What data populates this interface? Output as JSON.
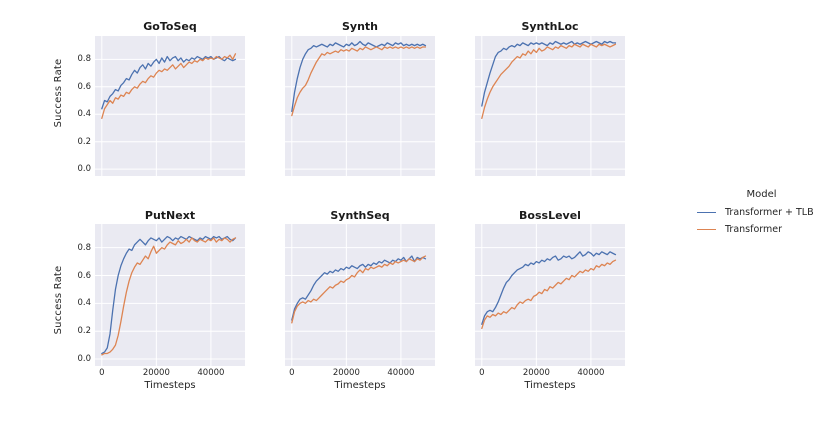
{
  "figure": {
    "ylabel": "Success Rate",
    "xlabel": "Timesteps",
    "plot_bg": "#eaeaf2",
    "grid_color": "#ffffff",
    "text_color": "#262626",
    "yticks": [
      "0.0",
      "0.2",
      "0.4",
      "0.6",
      "0.8"
    ],
    "ygrid": [
      0.0,
      0.2,
      0.4,
      0.6,
      0.8
    ],
    "xticks": [
      "0",
      "20000",
      "40000"
    ],
    "xgrid": [
      0,
      20000,
      40000
    ],
    "xlim": [
      -2500,
      52500
    ],
    "ylim": [
      -0.05,
      0.97
    ]
  },
  "legend": {
    "title": "Model",
    "entries": [
      {
        "label": "Transformer + TLB",
        "color": "#4c72b0"
      },
      {
        "label": "Transformer",
        "color": "#dd8452"
      }
    ]
  },
  "chart_data": [
    {
      "type": "line",
      "title": "GoToSeq",
      "xlabel": "Timesteps",
      "ylabel": "Success Rate",
      "xlim": [
        -2500,
        52500
      ],
      "ylim": [
        -0.05,
        0.97
      ],
      "x_step": 1000,
      "series": [
        {
          "name": "Transformer + TLB",
          "color": "#4c72b0",
          "values": [
            0.44,
            0.5,
            0.49,
            0.53,
            0.55,
            0.58,
            0.57,
            0.61,
            0.63,
            0.66,
            0.65,
            0.69,
            0.72,
            0.7,
            0.74,
            0.76,
            0.73,
            0.77,
            0.75,
            0.78,
            0.8,
            0.77,
            0.81,
            0.78,
            0.82,
            0.79,
            0.81,
            0.82,
            0.79,
            0.81,
            0.78,
            0.8,
            0.79,
            0.81,
            0.8,
            0.82,
            0.81,
            0.8,
            0.82,
            0.81,
            0.82,
            0.8,
            0.81,
            0.82,
            0.8,
            0.79,
            0.81,
            0.8,
            0.79,
            0.8
          ]
        },
        {
          "name": "Transformer",
          "color": "#dd8452",
          "values": [
            0.37,
            0.44,
            0.47,
            0.5,
            0.48,
            0.52,
            0.51,
            0.54,
            0.53,
            0.56,
            0.55,
            0.58,
            0.6,
            0.59,
            0.62,
            0.64,
            0.63,
            0.66,
            0.68,
            0.67,
            0.7,
            0.72,
            0.71,
            0.73,
            0.72,
            0.74,
            0.76,
            0.73,
            0.75,
            0.77,
            0.74,
            0.76,
            0.78,
            0.77,
            0.79,
            0.78,
            0.8,
            0.79,
            0.81,
            0.8,
            0.81,
            0.8,
            0.82,
            0.81,
            0.8,
            0.82,
            0.81,
            0.83,
            0.8,
            0.84
          ]
        }
      ]
    },
    {
      "type": "line",
      "title": "Synth",
      "xlabel": "Timesteps",
      "ylabel": "Success Rate",
      "xlim": [
        -2500,
        52500
      ],
      "ylim": [
        -0.05,
        0.97
      ],
      "x_step": 1000,
      "series": [
        {
          "name": "Transformer + TLB",
          "color": "#4c72b0",
          "values": [
            0.42,
            0.56,
            0.66,
            0.74,
            0.8,
            0.84,
            0.87,
            0.88,
            0.9,
            0.89,
            0.9,
            0.91,
            0.9,
            0.89,
            0.91,
            0.9,
            0.92,
            0.91,
            0.9,
            0.89,
            0.91,
            0.9,
            0.92,
            0.9,
            0.91,
            0.93,
            0.91,
            0.9,
            0.92,
            0.91,
            0.9,
            0.89,
            0.9,
            0.91,
            0.9,
            0.92,
            0.91,
            0.9,
            0.92,
            0.91,
            0.92,
            0.9,
            0.91,
            0.9,
            0.91,
            0.9,
            0.91,
            0.9,
            0.91,
            0.9
          ]
        },
        {
          "name": "Transformer",
          "color": "#dd8452",
          "values": [
            0.39,
            0.46,
            0.52,
            0.56,
            0.59,
            0.61,
            0.65,
            0.7,
            0.74,
            0.78,
            0.81,
            0.84,
            0.83,
            0.85,
            0.84,
            0.85,
            0.86,
            0.85,
            0.87,
            0.86,
            0.87,
            0.86,
            0.88,
            0.87,
            0.86,
            0.88,
            0.87,
            0.89,
            0.88,
            0.87,
            0.88,
            0.89,
            0.88,
            0.87,
            0.89,
            0.88,
            0.89,
            0.88,
            0.89,
            0.88,
            0.89,
            0.88,
            0.89,
            0.88,
            0.89,
            0.88,
            0.89,
            0.88,
            0.89,
            0.89
          ]
        }
      ]
    },
    {
      "type": "line",
      "title": "SynthLoc",
      "xlabel": "Timesteps",
      "ylabel": "Success Rate",
      "xlim": [
        -2500,
        52500
      ],
      "ylim": [
        -0.05,
        0.97
      ],
      "x_step": 1000,
      "series": [
        {
          "name": "Transformer + TLB",
          "color": "#4c72b0",
          "values": [
            0.46,
            0.56,
            0.63,
            0.7,
            0.76,
            0.82,
            0.85,
            0.86,
            0.88,
            0.87,
            0.89,
            0.9,
            0.89,
            0.91,
            0.9,
            0.92,
            0.91,
            0.9,
            0.92,
            0.91,
            0.92,
            0.91,
            0.92,
            0.91,
            0.9,
            0.92,
            0.91,
            0.93,
            0.92,
            0.91,
            0.92,
            0.91,
            0.92,
            0.93,
            0.91,
            0.92,
            0.91,
            0.92,
            0.93,
            0.92,
            0.91,
            0.92,
            0.93,
            0.92,
            0.91,
            0.93,
            0.92,
            0.93,
            0.92,
            0.92
          ]
        },
        {
          "name": "Transformer",
          "color": "#dd8452",
          "values": [
            0.37,
            0.45,
            0.51,
            0.56,
            0.6,
            0.63,
            0.66,
            0.69,
            0.71,
            0.73,
            0.75,
            0.78,
            0.8,
            0.82,
            0.81,
            0.84,
            0.83,
            0.86,
            0.84,
            0.87,
            0.85,
            0.88,
            0.86,
            0.87,
            0.89,
            0.88,
            0.87,
            0.89,
            0.88,
            0.9,
            0.89,
            0.88,
            0.9,
            0.89,
            0.91,
            0.9,
            0.89,
            0.91,
            0.9,
            0.89,
            0.91,
            0.9,
            0.89,
            0.91,
            0.9,
            0.91,
            0.9,
            0.89,
            0.9,
            0.91
          ]
        }
      ]
    },
    {
      "type": "line",
      "title": "PutNext",
      "xlabel": "Timesteps",
      "ylabel": "Success Rate",
      "xlim": [
        -2500,
        52500
      ],
      "ylim": [
        -0.05,
        0.97
      ],
      "x_step": 1000,
      "series": [
        {
          "name": "Transformer + TLB",
          "color": "#4c72b0",
          "values": [
            0.04,
            0.05,
            0.08,
            0.18,
            0.35,
            0.5,
            0.6,
            0.67,
            0.72,
            0.76,
            0.79,
            0.78,
            0.82,
            0.84,
            0.86,
            0.84,
            0.82,
            0.85,
            0.87,
            0.86,
            0.85,
            0.87,
            0.84,
            0.86,
            0.88,
            0.87,
            0.85,
            0.87,
            0.86,
            0.88,
            0.87,
            0.86,
            0.88,
            0.87,
            0.86,
            0.85,
            0.87,
            0.86,
            0.88,
            0.87,
            0.86,
            0.88,
            0.87,
            0.88,
            0.86,
            0.87,
            0.88,
            0.86,
            0.85,
            0.87
          ]
        },
        {
          "name": "Transformer",
          "color": "#dd8452",
          "values": [
            0.03,
            0.04,
            0.04,
            0.05,
            0.07,
            0.1,
            0.17,
            0.27,
            0.38,
            0.48,
            0.56,
            0.62,
            0.66,
            0.69,
            0.68,
            0.71,
            0.74,
            0.72,
            0.77,
            0.81,
            0.76,
            0.78,
            0.8,
            0.79,
            0.82,
            0.84,
            0.83,
            0.82,
            0.85,
            0.83,
            0.84,
            0.86,
            0.84,
            0.87,
            0.85,
            0.84,
            0.86,
            0.85,
            0.84,
            0.86,
            0.85,
            0.87,
            0.84,
            0.86,
            0.85,
            0.87,
            0.86,
            0.84,
            0.86,
            0.87
          ]
        }
      ]
    },
    {
      "type": "line",
      "title": "SynthSeq",
      "xlabel": "Timesteps",
      "ylabel": "Success Rate",
      "xlim": [
        -2500,
        52500
      ],
      "ylim": [
        -0.05,
        0.97
      ],
      "x_step": 1000,
      "series": [
        {
          "name": "Transformer + TLB",
          "color": "#4c72b0",
          "values": [
            0.28,
            0.36,
            0.4,
            0.43,
            0.44,
            0.43,
            0.46,
            0.49,
            0.53,
            0.56,
            0.58,
            0.6,
            0.62,
            0.61,
            0.63,
            0.62,
            0.64,
            0.63,
            0.65,
            0.64,
            0.66,
            0.65,
            0.67,
            0.66,
            0.65,
            0.67,
            0.68,
            0.66,
            0.68,
            0.67,
            0.69,
            0.68,
            0.7,
            0.69,
            0.71,
            0.7,
            0.69,
            0.71,
            0.7,
            0.72,
            0.71,
            0.73,
            0.7,
            0.72,
            0.74,
            0.7,
            0.73,
            0.72,
            0.73,
            0.72
          ]
        },
        {
          "name": "Transformer",
          "color": "#dd8452",
          "values": [
            0.26,
            0.34,
            0.38,
            0.4,
            0.41,
            0.4,
            0.42,
            0.41,
            0.43,
            0.42,
            0.44,
            0.46,
            0.48,
            0.5,
            0.52,
            0.51,
            0.53,
            0.54,
            0.56,
            0.55,
            0.57,
            0.58,
            0.6,
            0.59,
            0.62,
            0.64,
            0.62,
            0.65,
            0.64,
            0.66,
            0.65,
            0.66,
            0.67,
            0.66,
            0.68,
            0.67,
            0.69,
            0.68,
            0.7,
            0.69,
            0.7,
            0.71,
            0.7,
            0.72,
            0.71,
            0.7,
            0.72,
            0.71,
            0.73,
            0.74
          ]
        }
      ]
    },
    {
      "type": "line",
      "title": "BossLevel",
      "xlabel": "Timesteps",
      "ylabel": "Success Rate",
      "xlim": [
        -2500,
        52500
      ],
      "ylim": [
        -0.05,
        0.97
      ],
      "x_step": 1000,
      "series": [
        {
          "name": "Transformer + TLB",
          "color": "#4c72b0",
          "values": [
            0.25,
            0.31,
            0.34,
            0.35,
            0.34,
            0.37,
            0.41,
            0.46,
            0.51,
            0.55,
            0.57,
            0.6,
            0.62,
            0.64,
            0.65,
            0.66,
            0.68,
            0.67,
            0.69,
            0.68,
            0.7,
            0.69,
            0.71,
            0.7,
            0.72,
            0.71,
            0.73,
            0.74,
            0.71,
            0.72,
            0.74,
            0.73,
            0.74,
            0.72,
            0.73,
            0.75,
            0.77,
            0.74,
            0.75,
            0.77,
            0.76,
            0.74,
            0.76,
            0.75,
            0.77,
            0.76,
            0.75,
            0.77,
            0.76,
            0.75
          ]
        },
        {
          "name": "Transformer",
          "color": "#dd8452",
          "values": [
            0.22,
            0.28,
            0.31,
            0.3,
            0.32,
            0.31,
            0.33,
            0.32,
            0.34,
            0.33,
            0.35,
            0.37,
            0.36,
            0.39,
            0.41,
            0.4,
            0.42,
            0.43,
            0.42,
            0.45,
            0.46,
            0.48,
            0.47,
            0.5,
            0.49,
            0.52,
            0.51,
            0.53,
            0.55,
            0.54,
            0.56,
            0.58,
            0.57,
            0.6,
            0.59,
            0.61,
            0.63,
            0.62,
            0.64,
            0.63,
            0.65,
            0.64,
            0.67,
            0.66,
            0.68,
            0.67,
            0.69,
            0.68,
            0.7,
            0.71
          ]
        }
      ]
    }
  ]
}
